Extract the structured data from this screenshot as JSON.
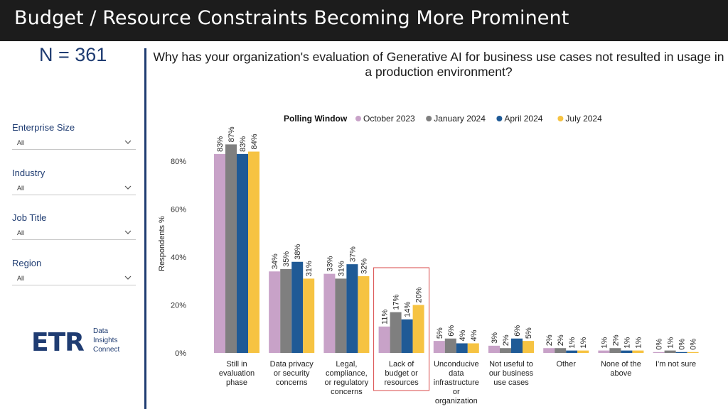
{
  "header": {
    "title": "Budget / Resource Constraints Becoming More Prominent"
  },
  "sidebar": {
    "n_label": "N = 361",
    "filters": [
      {
        "label": "Enterprise Size",
        "value": "All"
      },
      {
        "label": "Industry",
        "value": "All"
      },
      {
        "label": "Job Title",
        "value": "All"
      },
      {
        "label": "Region",
        "value": "All"
      }
    ],
    "logo": {
      "mark": "ETR",
      "lines": [
        "Data",
        "Insights",
        "Connect"
      ]
    }
  },
  "chart_data": {
    "type": "bar",
    "title": "Why has your organization's evaluation of Generative AI for business use cases not resulted in usage in a production environment?",
    "legend_title": "Polling Window",
    "legend_position": "top",
    "ylabel": "Respondents %",
    "ylim": [
      0,
      90
    ],
    "yticks": [
      "0%",
      "20%",
      "40%",
      "60%",
      "80%"
    ],
    "grid": false,
    "categories": [
      [
        "Still in",
        "evaluation",
        "phase"
      ],
      [
        "Data privacy",
        "or security",
        "concerns"
      ],
      [
        "Legal,",
        "compliance,",
        "or regulatory",
        "concerns"
      ],
      [
        "Lack of",
        "budget or",
        "resources"
      ],
      [
        "Unconducive",
        "data",
        "infrastructure",
        "or",
        "organization"
      ],
      [
        "Not useful to",
        "our business",
        "use cases"
      ],
      [
        "Other"
      ],
      [
        "None of the",
        "above"
      ],
      [
        "I'm not sure"
      ]
    ],
    "highlighted_category": 3,
    "series": [
      {
        "name": "October 2023",
        "color": "#c8a2c8",
        "values": [
          83,
          34,
          33,
          11,
          5,
          3,
          2,
          1,
          0
        ],
        "labels": [
          "83%",
          "34%",
          "33%",
          "11%",
          "5%",
          "3%",
          "2%",
          "1%",
          "0%"
        ]
      },
      {
        "name": "January 2024",
        "color": "#7f7f7f",
        "values": [
          87,
          35,
          31,
          17,
          6,
          2,
          2,
          2,
          1
        ],
        "labels": [
          "87%",
          "35%",
          "31%",
          "17%",
          "6%",
          "2%",
          "2%",
          "2%",
          "1%"
        ]
      },
      {
        "name": "April 2024",
        "color": "#1f5a96",
        "values": [
          83,
          38,
          37,
          14,
          4,
          6,
          1,
          1,
          0
        ],
        "labels": [
          "83%",
          "38%",
          "37%",
          "14%",
          "4%",
          "6%",
          "1%",
          "1%",
          "0%"
        ]
      },
      {
        "name": "July 2024",
        "color": "#f6c342",
        "values": [
          84,
          31,
          32,
          20,
          4,
          5,
          1,
          1,
          0
        ],
        "labels": [
          "84%",
          "31%",
          "32%",
          "20%",
          "4%",
          "5%",
          "1%",
          "1%",
          "0%"
        ]
      }
    ]
  }
}
